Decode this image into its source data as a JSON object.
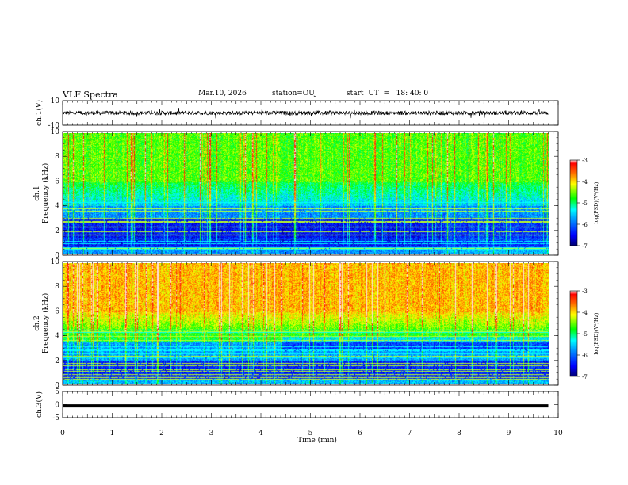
{
  "header": {
    "title": "VLF Spectra",
    "date": "Mar.10, 2026",
    "station": "station=OUJ",
    "start_ut": "start  UT  =   18: 40: 0"
  },
  "chart_data": [
    {
      "type": "line",
      "ylabel": "ch.1(V)",
      "ylim": [
        -10,
        10
      ],
      "yticks": [
        "10",
        "-10"
      ],
      "x_range_min": [
        0,
        9.8
      ],
      "series": [
        {
          "values": "noisy waveform centered near 0 V, amplitude about ±2 V"
        }
      ]
    },
    {
      "type": "heatmap",
      "ylabel_top": "ch.1",
      "ylabel": "Frequency  (kHz)",
      "ylim": [
        0,
        10
      ],
      "yticks": [
        "10",
        "8",
        "6",
        "4",
        "2",
        "0"
      ],
      "x_range_min": [
        0,
        9.8
      ],
      "colorbar": {
        "label": "log(PSD)(V²/Hz)",
        "range": [
          -7,
          -3
        ],
        "ticks": [
          "-3",
          "-4",
          "-5",
          "-6",
          "-7"
        ]
      }
    },
    {
      "type": "heatmap",
      "ylabel_top": "ch.2",
      "ylabel": "Frequency  (kHz)",
      "ylim": [
        0,
        10
      ],
      "yticks": [
        "10",
        "8",
        "6",
        "4",
        "2",
        "0"
      ],
      "x_range_min": [
        0,
        9.8
      ],
      "colorbar": {
        "label": "log(PSD)(V²/Hz)",
        "range": [
          -7,
          -3
        ],
        "ticks": [
          "-3",
          "-4",
          "-5",
          "-6",
          "-7"
        ]
      }
    },
    {
      "type": "line",
      "ylabel": "ch.3(V)",
      "ylim": [
        -5,
        5
      ],
      "yticks": [
        "5",
        "0",
        "-5"
      ],
      "x_range_min": [
        0,
        9.8
      ],
      "series": [
        {
          "values": "flat trace at about -0.5 V"
        }
      ]
    }
  ],
  "xaxis": {
    "label": "Time  (min)",
    "ticks": [
      "0",
      "1",
      "2",
      "3",
      "4",
      "5",
      "6",
      "7",
      "8",
      "9",
      "10"
    ],
    "range": [
      0,
      10
    ]
  },
  "colors": {
    "colormap": [
      "#00008c",
      "#0000ff",
      "#0080ff",
      "#00ffff",
      "#00ff00",
      "#ffff00",
      "#ff8000",
      "#ff0000",
      "#ffffff"
    ],
    "trace": "#000000"
  }
}
